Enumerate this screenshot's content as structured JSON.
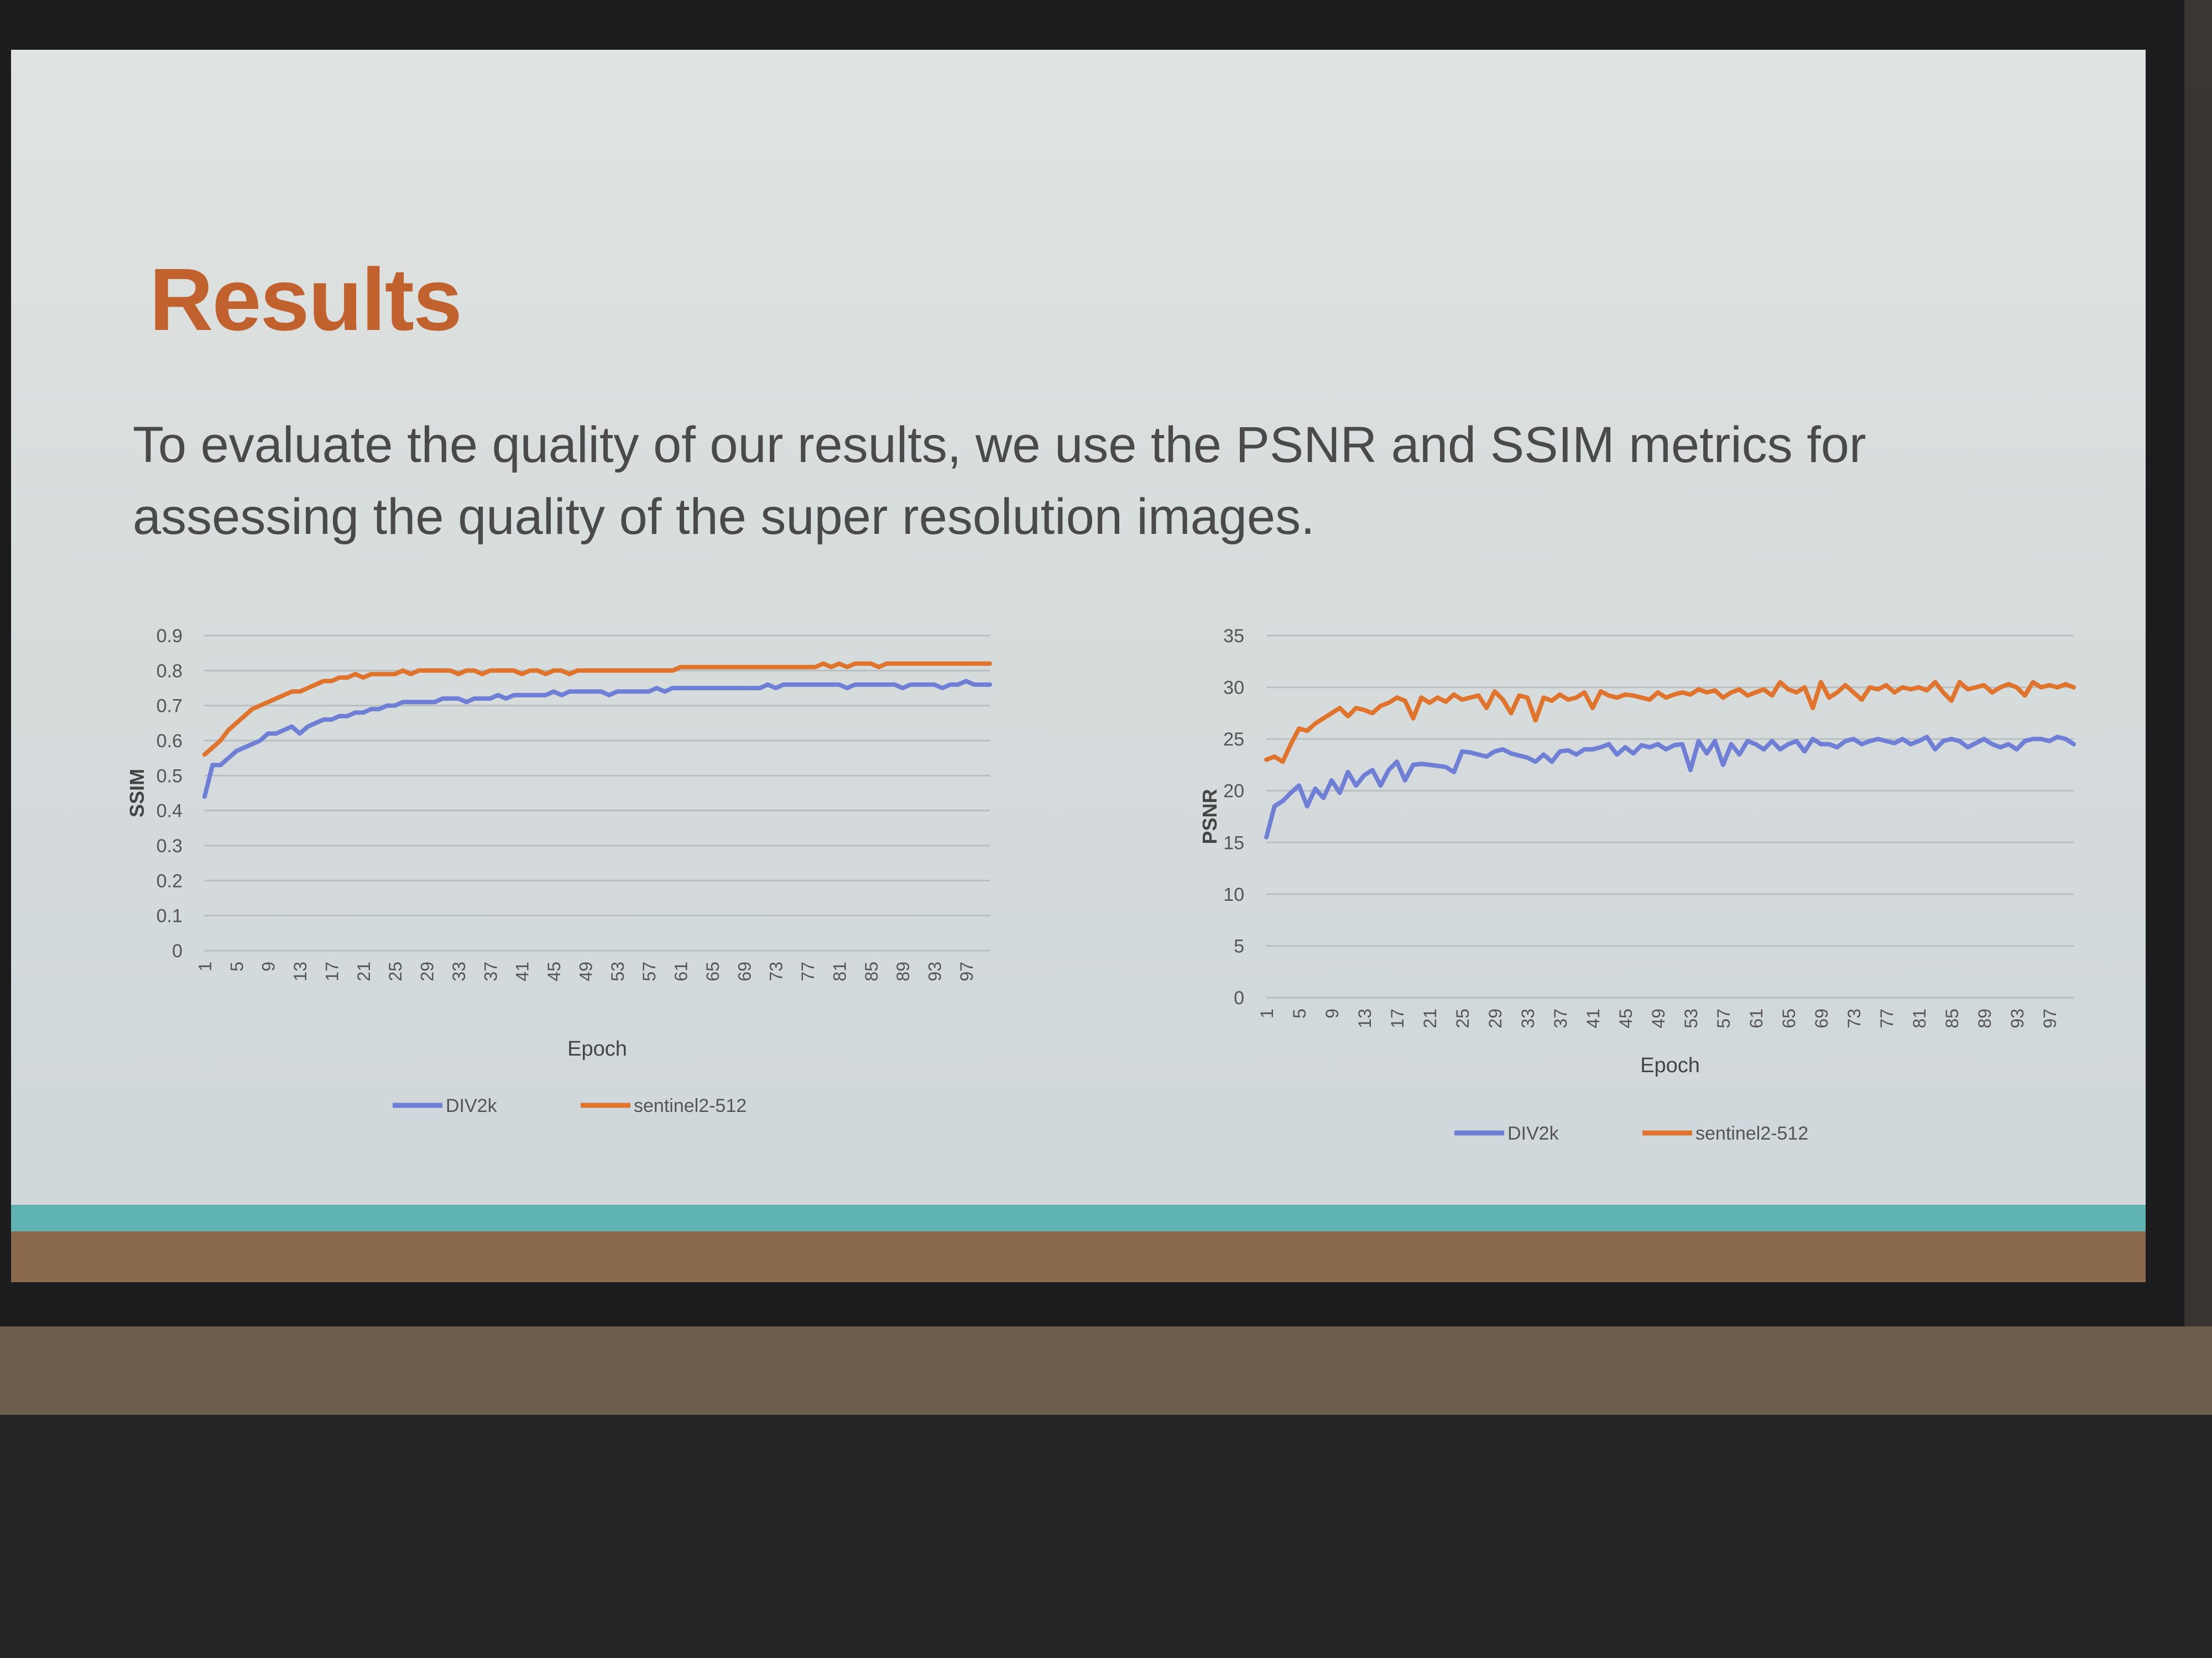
{
  "slide": {
    "title": "Results",
    "body": "To evaluate the quality of our results, we use the PSNR and SSIM metrics for assessing the quality of the super resolution images."
  },
  "colors": {
    "title": "#c1612d",
    "div2k": "#6f7fd6",
    "sentinel": "#e0742c",
    "grid": "#b9bec0",
    "tick": "#555555"
  },
  "chart_data": [
    {
      "type": "line",
      "xlabel": "Epoch",
      "ylabel": "SSIM",
      "ylim": [
        0,
        0.9
      ],
      "yticks": [
        "0",
        "0.1",
        "0.2",
        "0.3",
        "0.4",
        "0.5",
        "0.6",
        "0.7",
        "0.8",
        "0.9"
      ],
      "x": [
        1,
        2,
        3,
        4,
        5,
        6,
        7,
        8,
        9,
        10,
        11,
        12,
        13,
        14,
        15,
        16,
        17,
        18,
        19,
        20,
        21,
        22,
        23,
        24,
        25,
        26,
        27,
        28,
        29,
        30,
        31,
        32,
        33,
        34,
        35,
        36,
        37,
        38,
        39,
        40,
        41,
        42,
        43,
        44,
        45,
        46,
        47,
        48,
        49,
        50,
        51,
        52,
        53,
        54,
        55,
        56,
        57,
        58,
        59,
        60,
        61,
        62,
        63,
        64,
        65,
        66,
        67,
        68,
        69,
        70,
        71,
        72,
        73,
        74,
        75,
        76,
        77,
        78,
        79,
        80,
        81,
        82,
        83,
        84,
        85,
        86,
        87,
        88,
        89,
        90,
        91,
        92,
        93,
        94,
        95,
        96,
        97,
        98,
        99,
        100
      ],
      "xticks": [
        "1",
        "5",
        "9",
        "13",
        "17",
        "21",
        "25",
        "29",
        "33",
        "37",
        "41",
        "45",
        "49",
        "53",
        "57",
        "61",
        "65",
        "69",
        "73",
        "77",
        "81",
        "85",
        "89",
        "93",
        "97"
      ],
      "legend": "bottom",
      "grid": true,
      "series": [
        {
          "name": "DIV2k",
          "values": [
            0.44,
            0.53,
            0.53,
            0.55,
            0.57,
            0.58,
            0.59,
            0.6,
            0.62,
            0.62,
            0.63,
            0.64,
            0.62,
            0.64,
            0.65,
            0.66,
            0.66,
            0.67,
            0.67,
            0.68,
            0.68,
            0.69,
            0.69,
            0.7,
            0.7,
            0.71,
            0.71,
            0.71,
            0.71,
            0.71,
            0.72,
            0.72,
            0.72,
            0.71,
            0.72,
            0.72,
            0.72,
            0.73,
            0.72,
            0.73,
            0.73,
            0.73,
            0.73,
            0.73,
            0.74,
            0.73,
            0.74,
            0.74,
            0.74,
            0.74,
            0.74,
            0.73,
            0.74,
            0.74,
            0.74,
            0.74,
            0.74,
            0.75,
            0.74,
            0.75,
            0.75,
            0.75,
            0.75,
            0.75,
            0.75,
            0.75,
            0.75,
            0.75,
            0.75,
            0.75,
            0.75,
            0.76,
            0.75,
            0.76,
            0.76,
            0.76,
            0.76,
            0.76,
            0.76,
            0.76,
            0.76,
            0.75,
            0.76,
            0.76,
            0.76,
            0.76,
            0.76,
            0.76,
            0.75,
            0.76,
            0.76,
            0.76,
            0.76,
            0.75,
            0.76,
            0.76,
            0.77,
            0.76,
            0.76,
            0.76
          ]
        },
        {
          "name": "sentinel2-512",
          "values": [
            0.56,
            0.58,
            0.6,
            0.63,
            0.65,
            0.67,
            0.69,
            0.7,
            0.71,
            0.72,
            0.73,
            0.74,
            0.74,
            0.75,
            0.76,
            0.77,
            0.77,
            0.78,
            0.78,
            0.79,
            0.78,
            0.79,
            0.79,
            0.79,
            0.79,
            0.8,
            0.79,
            0.8,
            0.8,
            0.8,
            0.8,
            0.8,
            0.79,
            0.8,
            0.8,
            0.79,
            0.8,
            0.8,
            0.8,
            0.8,
            0.79,
            0.8,
            0.8,
            0.79,
            0.8,
            0.8,
            0.79,
            0.8,
            0.8,
            0.8,
            0.8,
            0.8,
            0.8,
            0.8,
            0.8,
            0.8,
            0.8,
            0.8,
            0.8,
            0.8,
            0.81,
            0.81,
            0.81,
            0.81,
            0.81,
            0.81,
            0.81,
            0.81,
            0.81,
            0.81,
            0.81,
            0.81,
            0.81,
            0.81,
            0.81,
            0.81,
            0.81,
            0.81,
            0.82,
            0.81,
            0.82,
            0.81,
            0.82,
            0.82,
            0.82,
            0.81,
            0.82,
            0.82,
            0.82,
            0.82,
            0.82,
            0.82,
            0.82,
            0.82,
            0.82,
            0.82,
            0.82,
            0.82,
            0.82,
            0.82
          ]
        }
      ]
    },
    {
      "type": "line",
      "xlabel": "Epoch",
      "ylabel": "PSNR",
      "ylim": [
        0,
        35
      ],
      "yticks": [
        "0",
        "5",
        "10",
        "15",
        "20",
        "25",
        "30",
        "35"
      ],
      "x": [
        1,
        2,
        3,
        4,
        5,
        6,
        7,
        8,
        9,
        10,
        11,
        12,
        13,
        14,
        15,
        16,
        17,
        18,
        19,
        20,
        21,
        22,
        23,
        24,
        25,
        26,
        27,
        28,
        29,
        30,
        31,
        32,
        33,
        34,
        35,
        36,
        37,
        38,
        39,
        40,
        41,
        42,
        43,
        44,
        45,
        46,
        47,
        48,
        49,
        50,
        51,
        52,
        53,
        54,
        55,
        56,
        57,
        58,
        59,
        60,
        61,
        62,
        63,
        64,
        65,
        66,
        67,
        68,
        69,
        70,
        71,
        72,
        73,
        74,
        75,
        76,
        77,
        78,
        79,
        80,
        81,
        82,
        83,
        84,
        85,
        86,
        87,
        88,
        89,
        90,
        91,
        92,
        93,
        94,
        95,
        96,
        97,
        98,
        99,
        100
      ],
      "xticks": [
        "1",
        "5",
        "9",
        "13",
        "17",
        "21",
        "25",
        "29",
        "33",
        "37",
        "41",
        "45",
        "49",
        "53",
        "57",
        "61",
        "65",
        "69",
        "73",
        "77",
        "81",
        "85",
        "89",
        "93",
        "97"
      ],
      "legend": "bottom",
      "grid": true,
      "series": [
        {
          "name": "DIV2k",
          "values": [
            15.5,
            18.5,
            19.0,
            19.8,
            20.5,
            18.5,
            20.2,
            19.3,
            21.0,
            19.8,
            21.8,
            20.5,
            21.5,
            22.0,
            20.5,
            22.0,
            22.8,
            21.0,
            22.5,
            22.6,
            22.5,
            22.4,
            22.3,
            21.8,
            23.8,
            23.7,
            23.5,
            23.3,
            23.8,
            24.0,
            23.6,
            23.4,
            23.2,
            22.8,
            23.5,
            22.8,
            23.8,
            23.9,
            23.5,
            24.0,
            24.0,
            24.2,
            24.5,
            23.5,
            24.2,
            23.6,
            24.4,
            24.2,
            24.5,
            24.0,
            24.4,
            24.5,
            22.0,
            24.8,
            23.6,
            24.8,
            22.5,
            24.5,
            23.5,
            24.8,
            24.5,
            24.0,
            24.8,
            24.0,
            24.5,
            24.8,
            23.8,
            25.0,
            24.5,
            24.5,
            24.2,
            24.8,
            25.0,
            24.5,
            24.8,
            25.0,
            24.8,
            24.6,
            25.0,
            24.5,
            24.8,
            25.2,
            24.0,
            24.8,
            25.0,
            24.8,
            24.2,
            24.6,
            25.0,
            24.5,
            24.2,
            24.5,
            24.0,
            24.8,
            25.0,
            25.0,
            24.8,
            25.2,
            25.0,
            24.5
          ]
        },
        {
          "name": "sentinel2-512",
          "values": [
            23.0,
            23.3,
            22.8,
            24.5,
            26.0,
            25.8,
            26.5,
            27.0,
            27.5,
            28.0,
            27.2,
            28.0,
            27.8,
            27.5,
            28.2,
            28.5,
            29.0,
            28.7,
            27.0,
            29.0,
            28.5,
            29.0,
            28.6,
            29.3,
            28.8,
            29.0,
            29.2,
            28.0,
            29.6,
            28.8,
            27.5,
            29.2,
            29.0,
            26.8,
            29.0,
            28.7,
            29.3,
            28.8,
            29.0,
            29.5,
            28.0,
            29.6,
            29.2,
            29.0,
            29.3,
            29.2,
            29.0,
            28.8,
            29.5,
            29.0,
            29.3,
            29.5,
            29.3,
            29.8,
            29.5,
            29.7,
            29.0,
            29.5,
            29.8,
            29.2,
            29.5,
            29.8,
            29.2,
            30.5,
            29.8,
            29.5,
            30.0,
            28.0,
            30.5,
            29.0,
            29.5,
            30.2,
            29.5,
            28.8,
            30.0,
            29.8,
            30.2,
            29.5,
            30.0,
            29.8,
            30.0,
            29.7,
            30.5,
            29.5,
            28.7,
            30.5,
            29.8,
            30.0,
            30.2,
            29.5,
            30.0,
            30.3,
            30.0,
            29.2,
            30.5,
            30.0,
            30.2,
            30.0,
            30.3,
            30.0
          ]
        }
      ]
    }
  ]
}
